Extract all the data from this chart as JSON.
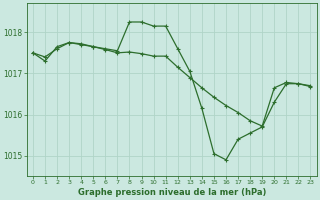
{
  "background_color": "#cbe8e0",
  "plot_bg_color": "#cbe8e0",
  "grid_color": "#b0d4c8",
  "line_color": "#2d6e2d",
  "marker_color": "#2d6e2d",
  "title": "Graphe pression niveau de la mer (hPa)",
  "xlim": [
    -0.5,
    23.5
  ],
  "ylim": [
    1014.5,
    1018.7
  ],
  "yticks": [
    1015,
    1016,
    1017,
    1018
  ],
  "xticks": [
    0,
    1,
    2,
    3,
    4,
    5,
    6,
    7,
    8,
    9,
    10,
    11,
    12,
    13,
    14,
    15,
    16,
    17,
    18,
    19,
    20,
    21,
    22,
    23
  ],
  "series": [
    {
      "x": [
        0,
        1,
        2,
        3,
        4,
        5,
        6,
        7,
        8,
        9,
        10,
        11,
        12,
        13,
        14,
        15,
        16,
        17,
        18,
        19,
        20,
        21,
        22,
        23
      ],
      "y": [
        1017.5,
        1017.3,
        1017.65,
        1017.75,
        1017.7,
        1017.65,
        1017.6,
        1017.55,
        1018.25,
        1018.25,
        1018.15,
        1018.15,
        1017.6,
        1017.05,
        1016.15,
        1015.05,
        1014.9,
        1015.4,
        1015.55,
        1015.7,
        1016.3,
        1016.75,
        1016.75,
        1016.7
      ]
    },
    {
      "x": [
        0,
        1,
        2,
        3,
        4,
        5,
        6,
        7,
        8,
        9,
        10,
        11,
        12,
        13,
        14,
        15,
        16,
        17,
        18,
        19,
        20,
        21,
        22,
        23
      ],
      "y": [
        1017.5,
        1017.4,
        1017.6,
        1017.75,
        1017.72,
        1017.65,
        1017.58,
        1017.5,
        1017.52,
        1017.48,
        1017.42,
        1017.42,
        1017.15,
        1016.9,
        1016.65,
        1016.42,
        1016.22,
        1016.05,
        1015.85,
        1015.72,
        1016.65,
        1016.78,
        1016.75,
        1016.68
      ]
    },
    {
      "x": [
        0,
        2,
        3,
        4,
        5,
        6,
        7,
        8,
        9,
        10,
        11,
        22,
        23
      ],
      "y": [
        1017.5,
        1017.6,
        1017.75,
        1017.72,
        1017.65,
        1017.58,
        1017.5,
        1017.52,
        1017.48,
        1017.42,
        1017.42,
        1016.75,
        1016.68
      ]
    }
  ],
  "figsize": [
    3.2,
    2.0
  ],
  "dpi": 100
}
